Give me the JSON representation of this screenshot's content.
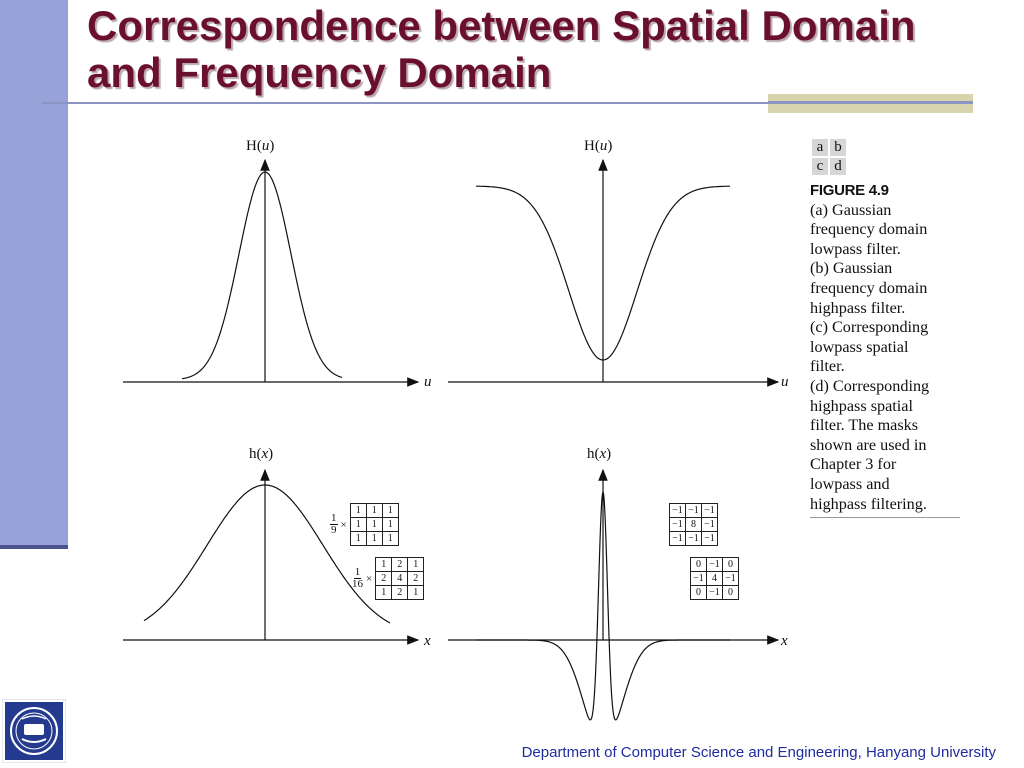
{
  "slide": {
    "title_lines": [
      "Correspondence between Spatial Domain",
      "and Frequency Domain"
    ],
    "footer": "Department of Computer Science and Engineering, Hanyang University",
    "colors": {
      "title": "#6b0f30",
      "side_bar": "#96a2d8",
      "footer": "#1f2d9e"
    }
  },
  "figure": {
    "grid_labels": [
      [
        "a",
        "b"
      ],
      [
        "c",
        "d"
      ]
    ],
    "label": "FIGURE 4.9",
    "caption_lines": [
      "(a) Gaussian",
      "frequency domain",
      "lowpass filter.",
      "(b) Gaussian",
      "frequency domain",
      "highpass filter.",
      "(c) Corresponding",
      "lowpass spatial",
      "filter.",
      "(d) Corresponding",
      "highpass spatial",
      "filter. The masks",
      "shown are used in",
      "Chapter 3 for",
      "lowpass and",
      "highpass filtering."
    ]
  },
  "panels": {
    "a": {
      "func": "H",
      "var": "u",
      "axis_var": "u"
    },
    "b": {
      "func": "H",
      "var": "u",
      "axis_var": "u"
    },
    "c": {
      "func": "h",
      "var": "x",
      "axis_var": "x"
    },
    "d": {
      "func": "h",
      "var": "x",
      "axis_var": "x"
    }
  },
  "masks": {
    "box": {
      "factor_num": "1",
      "factor_den": "9",
      "rows": [
        [
          "1",
          "1",
          "1"
        ],
        [
          "1",
          "1",
          "1"
        ],
        [
          "1",
          "1",
          "1"
        ]
      ]
    },
    "gauss": {
      "factor_num": "1",
      "factor_den": "16",
      "rows": [
        [
          "1",
          "2",
          "1"
        ],
        [
          "2",
          "4",
          "2"
        ],
        [
          "1",
          "2",
          "1"
        ]
      ]
    },
    "hp8": {
      "rows": [
        [
          "−1",
          "−1",
          "−1"
        ],
        [
          "−1",
          "8",
          "−1"
        ],
        [
          "−1",
          "−1",
          "−1"
        ]
      ]
    },
    "hp4": {
      "rows": [
        [
          "0",
          "−1",
          "0"
        ],
        [
          "−1",
          "4",
          "−1"
        ],
        [
          "0",
          "−1",
          "0"
        ]
      ]
    }
  }
}
